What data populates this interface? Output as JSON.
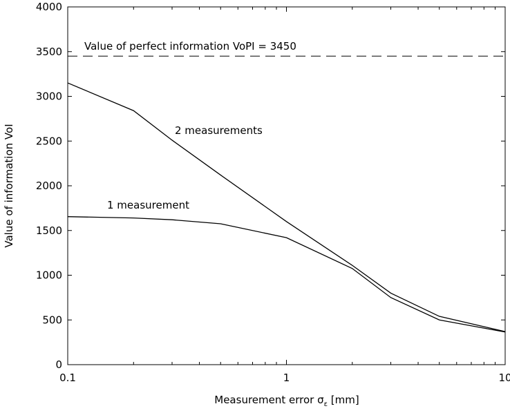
{
  "chart_data": {
    "type": "line",
    "xlabel": [
      "Measurement error σ",
      "ε",
      " [mm]"
    ],
    "ylabel": "Value of information VoI",
    "xscale": "log",
    "xlim": [
      0.1,
      10
    ],
    "xticks": [
      0.1,
      1,
      10
    ],
    "xminorticks": [
      0.2,
      0.3,
      0.4,
      0.5,
      0.6,
      0.7,
      0.8,
      0.9,
      2,
      3,
      4,
      5,
      6,
      7,
      8,
      9
    ],
    "ylim": [
      0,
      4000
    ],
    "yticks": [
      0,
      500,
      1000,
      1500,
      2000,
      2500,
      3000,
      3500,
      4000
    ],
    "x": [
      0.1,
      0.2,
      0.3,
      0.5,
      1,
      2,
      3,
      5,
      10
    ],
    "series": [
      {
        "name": "2 measurements",
        "color": "#000000",
        "values": [
          3150,
          2840,
          2510,
          2120,
          1600,
          1110,
          800,
          540,
          370
        ]
      },
      {
        "name": "1 measurement",
        "color": "#000000",
        "values": [
          1655,
          1640,
          1620,
          1575,
          1420,
          1075,
          750,
          500,
          365
        ]
      }
    ],
    "reference_line": {
      "value": 3450,
      "label": "Value of perfect information VoPI = 3450"
    }
  }
}
